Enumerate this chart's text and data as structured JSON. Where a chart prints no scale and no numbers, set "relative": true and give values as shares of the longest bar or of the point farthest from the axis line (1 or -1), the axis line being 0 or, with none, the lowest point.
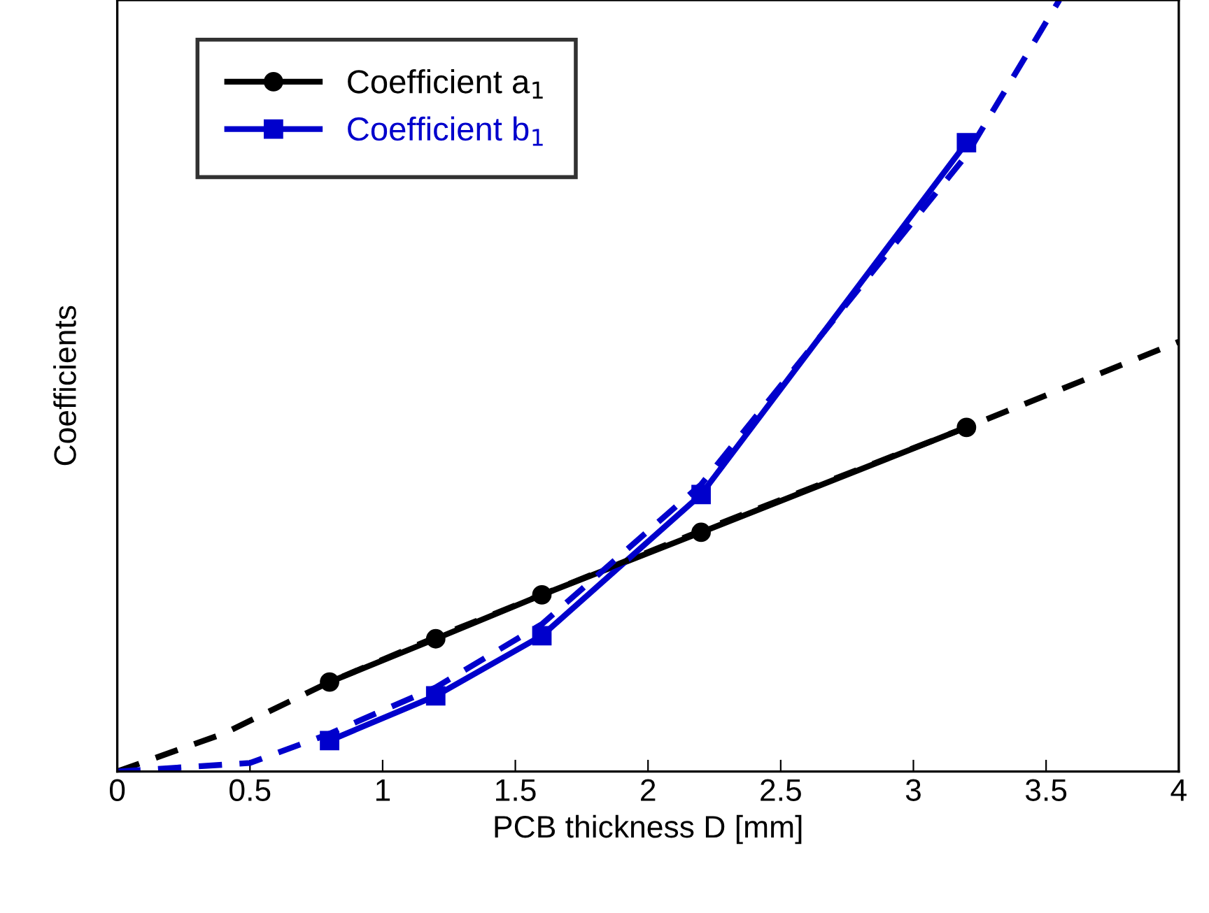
{
  "chart_data": {
    "type": "line",
    "relative": true,
    "xlabel": "PCB thickness D [mm]",
    "ylabel": "Coefficients",
    "xlim": [
      0,
      4
    ],
    "xticks": [
      0,
      0.5,
      1,
      1.5,
      2,
      2.5,
      3,
      3.5,
      4
    ],
    "grid": false,
    "legend": "top left",
    "line_style": "solid",
    "series": [
      {
        "name": "Coefficient a$_{1}$",
        "color": "#000000",
        "marker": "circle",
        "x": [
          0.8,
          1.2,
          1.6,
          2.2,
          3.2
        ],
        "values": [
          0.116,
          0.172,
          0.229,
          0.31,
          0.446
        ]
      },
      {
        "name": "Coefficient b$_{1}$",
        "color": "#0000cc",
        "marker": "square",
        "x": [
          0.8,
          1.2,
          1.6,
          2.2,
          3.2
        ],
        "values": [
          0.04,
          0.098,
          0.176,
          0.359,
          0.815
        ]
      },
      {
        "color": "#000000",
        "marker": "none",
        "line_style": "dashed",
        "x": [
          0,
          0.4,
          0.8,
          1.2,
          1.6,
          2.2,
          3.2,
          4
        ],
        "values": [
          0,
          0.049,
          0.116,
          0.174,
          0.229,
          0.312,
          0.446,
          0.557
        ]
      },
      {
        "color": "#0000cc",
        "marker": "none",
        "line_style": "dashed",
        "x": [
          0,
          0.5,
          0.8,
          1.2,
          1.6,
          2.2,
          3.2,
          3.55
        ],
        "values": [
          0,
          0.011,
          0.049,
          0.109,
          0.191,
          0.372,
          0.799,
          1.0
        ]
      }
    ]
  }
}
